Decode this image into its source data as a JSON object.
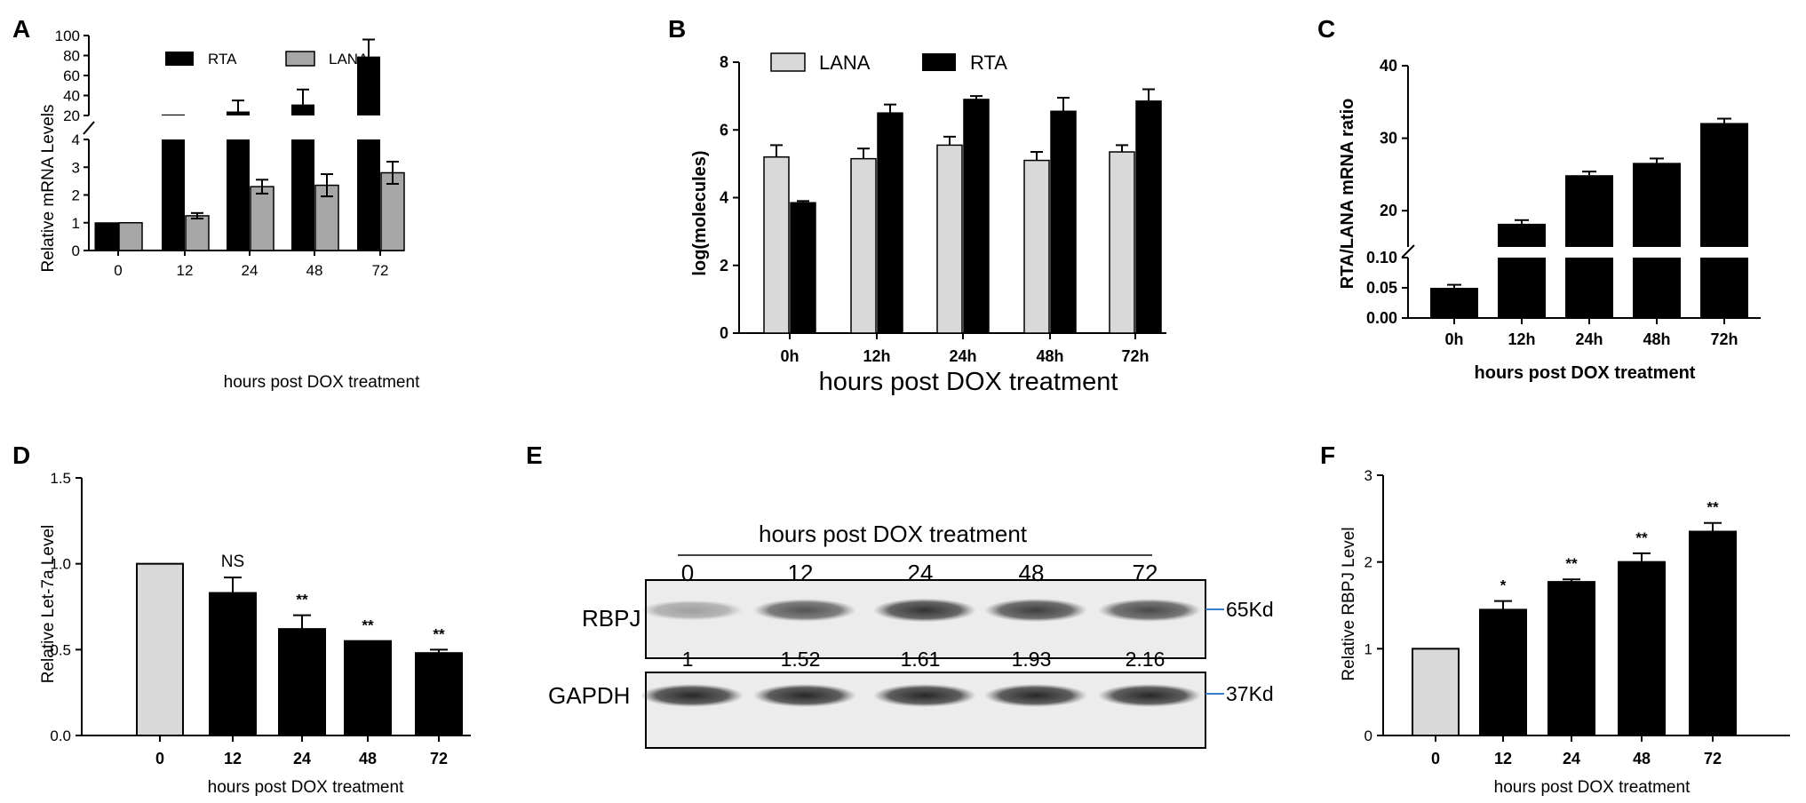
{
  "panels": {
    "A": "A",
    "B": "B",
    "C": "C",
    "D": "D",
    "E": "E",
    "F": "F"
  },
  "chart_data": [
    {
      "panel": "A",
      "type": "bar",
      "categories": [
        "0",
        "12",
        "24",
        "48",
        "72"
      ],
      "series": [
        {
          "name": "RTA",
          "values": [
            1,
            21,
            24,
            31,
            79
          ],
          "errors": [
            0,
            0,
            11,
            15,
            17
          ],
          "color": "#000000"
        },
        {
          "name": "LANA",
          "values": [
            1,
            1.25,
            2.3,
            2.35,
            2.8
          ],
          "errors": [
            0,
            0.1,
            0.25,
            0.4,
            0.4
          ],
          "color": "#a6a6a6"
        }
      ],
      "xlabel": "hours post DOX treatment",
      "ylabel": "Relative mRNA Levels",
      "ylim": [
        0,
        100
      ],
      "axis_break": [
        4,
        20
      ],
      "yticks_lower": [
        0,
        1,
        2,
        3,
        4
      ],
      "yticks_upper": [
        20,
        40,
        60,
        80,
        100
      ],
      "legend": "top"
    },
    {
      "panel": "B",
      "type": "bar",
      "categories": [
        "0h",
        "12h",
        "24h",
        "48h",
        "72h"
      ],
      "series": [
        {
          "name": "LANA",
          "values": [
            5.2,
            5.15,
            5.55,
            5.1,
            5.35
          ],
          "errors": [
            0.35,
            0.3,
            0.25,
            0.25,
            0.2
          ],
          "color": "#d9d9d9"
        },
        {
          "name": "RTA",
          "values": [
            3.85,
            6.5,
            6.9,
            6.55,
            6.85
          ],
          "errors": [
            0.05,
            0.25,
            0.1,
            0.4,
            0.35
          ],
          "color": "#000000"
        }
      ],
      "xlabel": "hours post DOX treatment",
      "ylabel": "log(molecules)",
      "ylim": [
        0,
        8
      ],
      "yticks": [
        0,
        2,
        4,
        6,
        8
      ],
      "legend": "top"
    },
    {
      "panel": "C",
      "type": "bar",
      "categories": [
        "0h",
        "12h",
        "24h",
        "48h",
        "72h"
      ],
      "series": [
        {
          "name": "",
          "values": [
            0.05,
            18.2,
            24.9,
            26.6,
            32.1
          ],
          "errors": [
            0.005,
            0.5,
            0.5,
            0.6,
            0.6
          ],
          "color": "#000000"
        }
      ],
      "xlabel": "hours post DOX treatment",
      "ylabel": "RTA/LANA mRNA ratio",
      "ylim": [
        0,
        40
      ],
      "axis_break": [
        0.1,
        15
      ],
      "yticks_lower": [
        0.0,
        0.05,
        0.1
      ],
      "yticks_upper": [
        20,
        30,
        40
      ]
    },
    {
      "panel": "D",
      "type": "bar",
      "categories": [
        "0",
        "12",
        "24",
        "48",
        "72"
      ],
      "series": [
        {
          "name": "",
          "values": [
            1.0,
            0.83,
            0.62,
            0.55,
            0.48
          ],
          "errors": [
            0,
            0.09,
            0.08,
            0,
            0.02
          ]
        }
      ],
      "bar_colors": [
        "#d9d9d9",
        "#000000",
        "#000000",
        "#000000",
        "#000000"
      ],
      "annotations": [
        "",
        "NS",
        "**",
        "**",
        "**"
      ],
      "xlabel": "hours post DOX treatment",
      "ylabel": "Relative Let-7a Level",
      "ylim": [
        0,
        1.5
      ],
      "yticks": [
        "0.0",
        "0.5",
        "1.0",
        "1.5"
      ]
    },
    {
      "panel": "F",
      "type": "bar",
      "categories": [
        "0",
        "12",
        "24",
        "48",
        "72"
      ],
      "series": [
        {
          "name": "",
          "values": [
            1.0,
            1.45,
            1.77,
            2.0,
            2.35
          ],
          "errors": [
            0,
            0.1,
            0.03,
            0.1,
            0.1
          ]
        }
      ],
      "bar_colors": [
        "#d9d9d9",
        "#000000",
        "#000000",
        "#000000",
        "#000000"
      ],
      "annotations": [
        "",
        "*",
        "**",
        "**",
        "**"
      ],
      "xlabel": "hours post DOX treatment",
      "ylabel": "Relative RBPJ Level",
      "ylim": [
        0,
        3
      ],
      "yticks": [
        0,
        1,
        2,
        3
      ]
    }
  ],
  "blot": {
    "title": "hours post DOX treatment",
    "lanes": [
      "0",
      "12",
      "24",
      "48",
      "72"
    ],
    "rows": [
      {
        "label": "RBPJ",
        "mw": "65Kd",
        "intensity": [
          0.35,
          0.7,
          0.85,
          0.8,
          0.75
        ]
      },
      {
        "label": "GAPDH",
        "mw": "37Kd",
        "intensity": [
          0.9,
          0.9,
          0.9,
          0.9,
          0.9
        ]
      }
    ],
    "quant": [
      "1",
      "1.52",
      "1.61",
      "1.93",
      "2.16"
    ]
  }
}
